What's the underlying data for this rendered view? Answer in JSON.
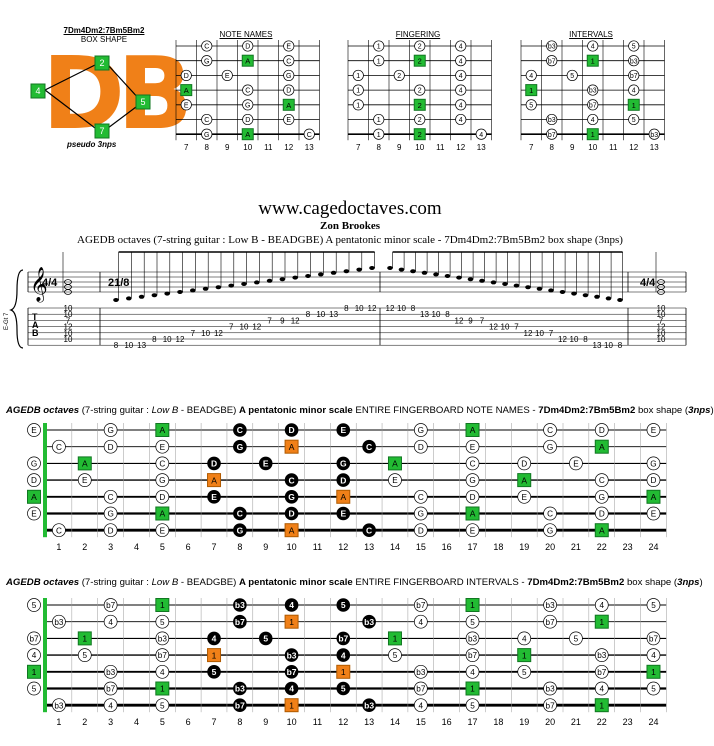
{
  "box": {
    "shape_name": "7Dm4Dm2:7Bm5Bm2",
    "caption": "BOX SHAPE",
    "big_letters": "DB",
    "label": "pseudo 3nps",
    "markers": [
      "2",
      "4",
      "5",
      "7"
    ]
  },
  "mini_titles": [
    "NOTE NAMES",
    "FINGERING",
    "INTERVALS"
  ],
  "mini_fret_numbers": [
    "7",
    "8",
    "9",
    "10",
    "11",
    "12",
    "13"
  ],
  "mini_strings": {
    "notes": [
      [
        [
          2,
          "C"
        ],
        [
          4,
          "D"
        ],
        [
          6,
          "E"
        ]
      ],
      [
        [
          2,
          "G"
        ],
        [
          4,
          "A"
        ],
        [
          6,
          "C"
        ]
      ],
      [
        [
          1,
          "D"
        ],
        [
          3,
          "E"
        ],
        [
          6,
          "G"
        ]
      ],
      [
        [
          1,
          "A"
        ],
        [
          4,
          "C"
        ],
        [
          6,
          "D"
        ]
      ],
      [
        [
          1,
          "E"
        ],
        [
          4,
          "G"
        ],
        [
          6,
          "A"
        ]
      ],
      [
        [
          2,
          "C"
        ],
        [
          4,
          "D"
        ],
        [
          6,
          "E"
        ]
      ],
      [
        [
          2,
          "G"
        ],
        [
          4,
          "A"
        ],
        [
          7,
          "C"
        ]
      ]
    ],
    "fingering": [
      [
        [
          2,
          "1"
        ],
        [
          4,
          "2"
        ],
        [
          6,
          "4"
        ]
      ],
      [
        [
          2,
          "1"
        ],
        [
          4,
          "2"
        ],
        [
          6,
          "4"
        ]
      ],
      [
        [
          1,
          "1"
        ],
        [
          3,
          "2"
        ],
        [
          6,
          "4"
        ]
      ],
      [
        [
          1,
          "1"
        ],
        [
          4,
          "2"
        ],
        [
          6,
          "4"
        ]
      ],
      [
        [
          1,
          "1"
        ],
        [
          4,
          "2"
        ],
        [
          6,
          "4"
        ]
      ],
      [
        [
          2,
          "1"
        ],
        [
          4,
          "2"
        ],
        [
          6,
          "4"
        ]
      ],
      [
        [
          2,
          "1"
        ],
        [
          4,
          "2"
        ],
        [
          7,
          "4"
        ]
      ]
    ],
    "intervals": [
      [
        [
          2,
          "b3"
        ],
        [
          4,
          "4"
        ],
        [
          6,
          "5"
        ]
      ],
      [
        [
          2,
          "b7"
        ],
        [
          4,
          "1"
        ],
        [
          6,
          "b3"
        ]
      ],
      [
        [
          1,
          "4"
        ],
        [
          3,
          "5"
        ],
        [
          6,
          "b7"
        ]
      ],
      [
        [
          1,
          "1"
        ],
        [
          4,
          "b3"
        ],
        [
          6,
          "4"
        ]
      ],
      [
        [
          1,
          "5"
        ],
        [
          4,
          "b7"
        ],
        [
          6,
          "1"
        ]
      ],
      [
        [
          2,
          "b3"
        ],
        [
          4,
          "4"
        ],
        [
          6,
          "5"
        ]
      ],
      [
        [
          2,
          "b7"
        ],
        [
          4,
          "1"
        ],
        [
          7,
          "b3"
        ]
      ]
    ]
  },
  "header": {
    "site": "www.cagedoctaves.com",
    "author": "Zon Brookes",
    "subtitle": "AGEDB octaves (7-string guitar : Low B - BEADGBE) A pentatonic minor scale - 7Dm4Dm2:7Bm5Bm2 box shape (3nps)"
  },
  "score": {
    "tempo_left": "4/4",
    "tempo_mid": "21/8",
    "tab_label": "TAB",
    "side_label": "E-Gt 7",
    "chord_left_tab": [
      "10",
      "10",
      "7",
      "12",
      "10",
      "10"
    ],
    "run_up_frets": [
      "8",
      "10",
      "13",
      "8",
      "10",
      "12",
      "7",
      "10",
      "12",
      "7",
      "10",
      "12",
      "7",
      "9",
      "12",
      "8",
      "10",
      "13",
      "8",
      "10",
      "12"
    ],
    "run_down_frets": [
      "12",
      "10",
      "8",
      "13",
      "10",
      "8",
      "12",
      "9",
      "7",
      "12",
      "10",
      "7",
      "12",
      "10",
      "7",
      "12",
      "10",
      "8",
      "13",
      "10",
      "8"
    ],
    "chord_right_tab": [
      "10",
      "10",
      "7",
      "12",
      "10",
      "10"
    ]
  },
  "section1": {
    "title_1": "AGEDB octaves",
    "title_2": " (7-string guitar : ",
    "title_3": "Low B",
    "title_4": " - BEADGBE) ",
    "title_5": "A pentatonic minor scale",
    "title_6": " ENTIRE FINGERBOARD NOTE NAMES - ",
    "title_7": "7Dm4Dm2:7Bm5Bm2",
    "title_8": " box shape (",
    "title_9": "3nps",
    "title_10": ")"
  },
  "section2": {
    "title_1": "AGEDB octaves",
    "title_2": " (7-string guitar : ",
    "title_3": "Low B",
    "title_4": " - BEADGBE) ",
    "title_5": "A pentatonic minor scale",
    "title_6": " ENTIRE FINGERBOARD INTERVALS - ",
    "title_7": "7Dm4Dm2:7Bm5Bm2",
    "title_8": " box shape (",
    "title_9": "3nps",
    "title_10": ")"
  },
  "fret_numbers": [
    "1",
    "2",
    "3",
    "4",
    "5",
    "6",
    "7",
    "8",
    "9",
    "10",
    "11",
    "12",
    "13",
    "14",
    "15",
    "16",
    "17",
    "18",
    "19",
    "20",
    "21",
    "22",
    "23",
    "24"
  ],
  "fingerboard_notes": [
    [
      [
        0,
        "E",
        "w"
      ],
      [
        3,
        "G",
        "w"
      ],
      [
        5,
        "A",
        "g"
      ],
      [
        8,
        "C",
        "k"
      ],
      [
        10,
        "D",
        "k"
      ],
      [
        12,
        "E",
        "k"
      ],
      [
        15,
        "G",
        "w"
      ],
      [
        17,
        "A",
        "g"
      ],
      [
        20,
        "C",
        "w"
      ],
      [
        22,
        "D",
        "w"
      ],
      [
        24,
        "E",
        "w"
      ]
    ],
    [
      [
        1,
        "C",
        "w"
      ],
      [
        3,
        "D",
        "w"
      ],
      [
        5,
        "E",
        "w"
      ],
      [
        8,
        "G",
        "k"
      ],
      [
        10,
        "A",
        "o"
      ],
      [
        13,
        "C",
        "k"
      ],
      [
        15,
        "D",
        "w"
      ],
      [
        17,
        "E",
        "w"
      ],
      [
        20,
        "G",
        "w"
      ],
      [
        22,
        "A",
        "g"
      ]
    ],
    [
      [
        0,
        "G",
        "w"
      ],
      [
        2,
        "A",
        "g"
      ],
      [
        5,
        "C",
        "w"
      ],
      [
        7,
        "D",
        "k"
      ],
      [
        9,
        "E",
        "k"
      ],
      [
        12,
        "G",
        "k"
      ],
      [
        14,
        "A",
        "g"
      ],
      [
        17,
        "C",
        "w"
      ],
      [
        19,
        "D",
        "w"
      ],
      [
        21,
        "E",
        "w"
      ],
      [
        24,
        "G",
        "w"
      ]
    ],
    [
      [
        0,
        "D",
        "w"
      ],
      [
        2,
        "E",
        "w"
      ],
      [
        5,
        "G",
        "w"
      ],
      [
        7,
        "A",
        "o"
      ],
      [
        10,
        "C",
        "k"
      ],
      [
        12,
        "D",
        "k"
      ],
      [
        14,
        "E",
        "w"
      ],
      [
        17,
        "G",
        "w"
      ],
      [
        19,
        "A",
        "g"
      ],
      [
        22,
        "C",
        "w"
      ],
      [
        24,
        "D",
        "w"
      ]
    ],
    [
      [
        0,
        "A",
        "g"
      ],
      [
        3,
        "C",
        "w"
      ],
      [
        5,
        "D",
        "w"
      ],
      [
        7,
        "E",
        "k"
      ],
      [
        10,
        "G",
        "k"
      ],
      [
        12,
        "A",
        "o"
      ],
      [
        15,
        "C",
        "w"
      ],
      [
        17,
        "D",
        "w"
      ],
      [
        19,
        "E",
        "w"
      ],
      [
        22,
        "G",
        "w"
      ],
      [
        24,
        "A",
        "g"
      ]
    ],
    [
      [
        0,
        "E",
        "w"
      ],
      [
        3,
        "G",
        "w"
      ],
      [
        5,
        "A",
        "g"
      ],
      [
        8,
        "C",
        "k"
      ],
      [
        10,
        "D",
        "k"
      ],
      [
        12,
        "E",
        "k"
      ],
      [
        15,
        "G",
        "w"
      ],
      [
        17,
        "A",
        "g"
      ],
      [
        20,
        "C",
        "w"
      ],
      [
        22,
        "D",
        "w"
      ],
      [
        24,
        "E",
        "w"
      ]
    ],
    [
      [
        1,
        "C",
        "w"
      ],
      [
        3,
        "D",
        "w"
      ],
      [
        5,
        "E",
        "w"
      ],
      [
        8,
        "G",
        "k"
      ],
      [
        10,
        "A",
        "o"
      ],
      [
        13,
        "C",
        "k"
      ],
      [
        15,
        "D",
        "w"
      ],
      [
        17,
        "E",
        "w"
      ],
      [
        20,
        "G",
        "w"
      ],
      [
        22,
        "A",
        "g"
      ]
    ]
  ],
  "fingerboard_intervals": [
    [
      [
        0,
        "5",
        "w"
      ],
      [
        3,
        "b7",
        "w"
      ],
      [
        5,
        "1",
        "g"
      ],
      [
        8,
        "b3",
        "k"
      ],
      [
        10,
        "4",
        "k"
      ],
      [
        12,
        "5",
        "k"
      ],
      [
        15,
        "b7",
        "w"
      ],
      [
        17,
        "1",
        "g"
      ],
      [
        20,
        "b3",
        "w"
      ],
      [
        22,
        "4",
        "w"
      ],
      [
        24,
        "5",
        "w"
      ]
    ],
    [
      [
        1,
        "b3",
        "w"
      ],
      [
        3,
        "4",
        "w"
      ],
      [
        5,
        "5",
        "w"
      ],
      [
        8,
        "b7",
        "k"
      ],
      [
        10,
        "1",
        "o"
      ],
      [
        13,
        "b3",
        "k"
      ],
      [
        15,
        "4",
        "w"
      ],
      [
        17,
        "5",
        "w"
      ],
      [
        20,
        "b7",
        "w"
      ],
      [
        22,
        "1",
        "g"
      ]
    ],
    [
      [
        0,
        "b7",
        "w"
      ],
      [
        2,
        "1",
        "g"
      ],
      [
        5,
        "b3",
        "w"
      ],
      [
        7,
        "4",
        "k"
      ],
      [
        9,
        "5",
        "k"
      ],
      [
        12,
        "b7",
        "k"
      ],
      [
        14,
        "1",
        "g"
      ],
      [
        17,
        "b3",
        "w"
      ],
      [
        19,
        "4",
        "w"
      ],
      [
        21,
        "5",
        "w"
      ],
      [
        24,
        "b7",
        "w"
      ]
    ],
    [
      [
        0,
        "4",
        "w"
      ],
      [
        2,
        "5",
        "w"
      ],
      [
        5,
        "b7",
        "w"
      ],
      [
        7,
        "1",
        "o"
      ],
      [
        10,
        "b3",
        "k"
      ],
      [
        12,
        "4",
        "k"
      ],
      [
        14,
        "5",
        "w"
      ],
      [
        17,
        "b7",
        "w"
      ],
      [
        19,
        "1",
        "g"
      ],
      [
        22,
        "b3",
        "w"
      ],
      [
        24,
        "4",
        "w"
      ]
    ],
    [
      [
        0,
        "1",
        "g"
      ],
      [
        3,
        "b3",
        "w"
      ],
      [
        5,
        "4",
        "w"
      ],
      [
        7,
        "5",
        "k"
      ],
      [
        10,
        "b7",
        "k"
      ],
      [
        12,
        "1",
        "o"
      ],
      [
        15,
        "b3",
        "w"
      ],
      [
        17,
        "4",
        "w"
      ],
      [
        19,
        "5",
        "w"
      ],
      [
        22,
        "b7",
        "w"
      ],
      [
        24,
        "1",
        "g"
      ]
    ],
    [
      [
        0,
        "5",
        "w"
      ],
      [
        3,
        "b7",
        "w"
      ],
      [
        5,
        "1",
        "g"
      ],
      [
        8,
        "b3",
        "k"
      ],
      [
        10,
        "4",
        "k"
      ],
      [
        12,
        "5",
        "k"
      ],
      [
        15,
        "b7",
        "w"
      ],
      [
        17,
        "1",
        "g"
      ],
      [
        20,
        "b3",
        "w"
      ],
      [
        22,
        "4",
        "w"
      ],
      [
        24,
        "5",
        "w"
      ]
    ],
    [
      [
        1,
        "b3",
        "w"
      ],
      [
        3,
        "4",
        "w"
      ],
      [
        5,
        "5",
        "w"
      ],
      [
        8,
        "b7",
        "k"
      ],
      [
        10,
        "1",
        "o"
      ],
      [
        13,
        "b3",
        "k"
      ],
      [
        15,
        "4",
        "w"
      ],
      [
        17,
        "5",
        "w"
      ],
      [
        20,
        "b7",
        "w"
      ],
      [
        22,
        "1",
        "g"
      ]
    ]
  ],
  "colors": {
    "green": "#22bb33",
    "orange": "#f08018",
    "black": "#000000",
    "white": "#ffffff"
  }
}
